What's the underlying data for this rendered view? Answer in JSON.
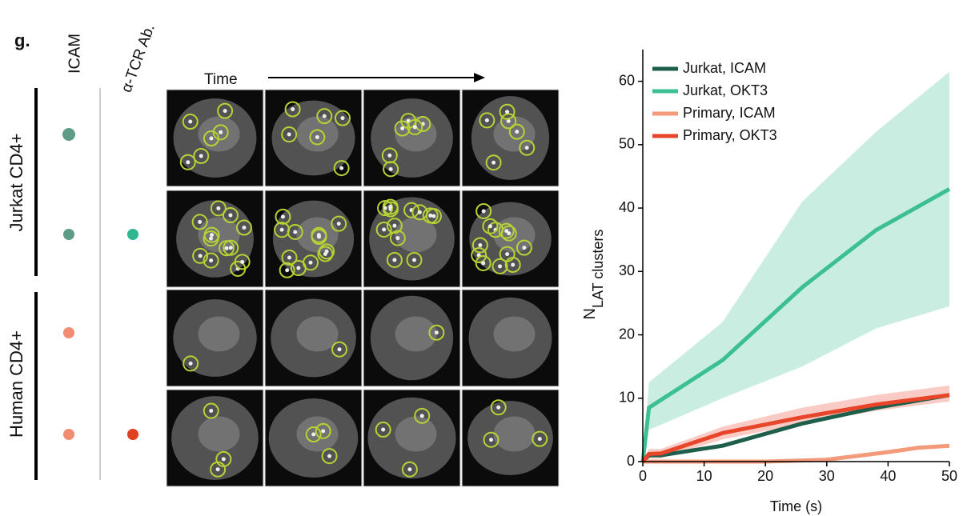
{
  "panel": {
    "label": "g.",
    "col_icam": "ICAM",
    "col_tcr": "α-TCR Ab.",
    "time": "Time",
    "row_jurkat": "Jurkat CD4+",
    "row_human": "Human CD4+"
  },
  "chart_data": {
    "type": "line",
    "xlabel": "Time (s)",
    "ylabel": "N",
    "ylabel_sub": "LAT clusters",
    "xlim": [
      0,
      50
    ],
    "ylim": [
      0,
      65
    ],
    "xticks": [
      0,
      10,
      20,
      30,
      40,
      50
    ],
    "yticks": [
      0,
      10,
      20,
      30,
      40,
      50,
      60
    ],
    "legend": "upper-left",
    "series": [
      {
        "name": "Jurkat, ICAM",
        "color": "#1d5f4b",
        "x": [
          0,
          1,
          3,
          13,
          26,
          38,
          50
        ],
        "values": [
          0,
          1,
          1,
          2.5,
          6,
          8.5,
          10.5
        ]
      },
      {
        "name": "Jurkat, OKT3",
        "color": "#3dbf94",
        "x": [
          0,
          1,
          13,
          26,
          38,
          50
        ],
        "values": [
          0,
          8.5,
          16,
          27.5,
          36.5,
          43
        ],
        "lower": [
          0,
          5,
          10,
          15,
          21,
          24.5
        ],
        "upper": [
          0,
          12.5,
          22,
          41,
          52,
          61.5
        ]
      },
      {
        "name": "Primary, ICAM",
        "color": "#f29a7a",
        "x": [
          0,
          20,
          30,
          40,
          45,
          50
        ],
        "values": [
          0,
          0,
          0.3,
          1.5,
          2.2,
          2.5
        ]
      },
      {
        "name": "Primary, OKT3",
        "color": "#e8452a",
        "x": [
          0,
          1,
          3,
          13,
          26,
          38,
          50
        ],
        "values": [
          0,
          1.2,
          1.3,
          4.5,
          7,
          9,
          10.5
        ],
        "lower": [
          0,
          0.5,
          0.5,
          3.5,
          6,
          8,
          9.5
        ],
        "upper": [
          0,
          2,
          2,
          5.5,
          8.5,
          10.5,
          12
        ]
      }
    ]
  }
}
